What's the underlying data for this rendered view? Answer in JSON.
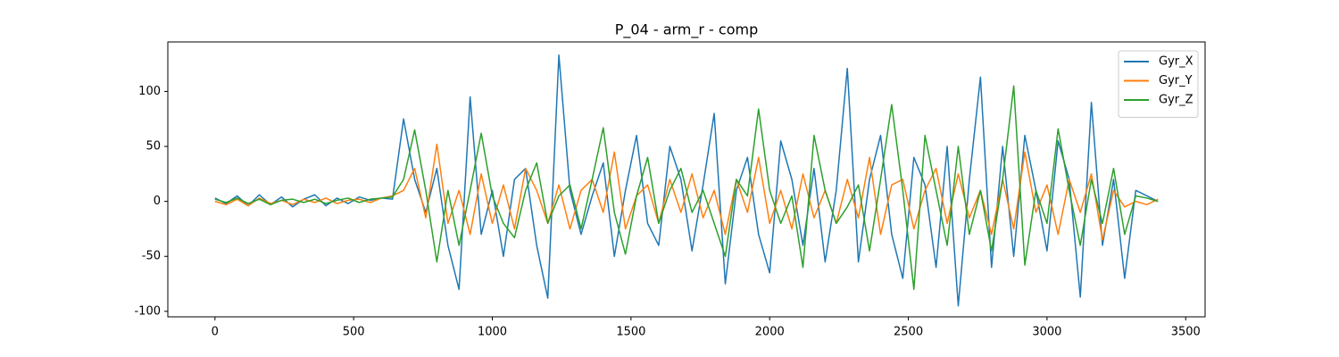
{
  "chart_data": {
    "type": "line",
    "title": "P_04 - arm_r - comp",
    "x": [
      0,
      40,
      80,
      120,
      160,
      200,
      240,
      280,
      320,
      360,
      400,
      440,
      480,
      520,
      560,
      600,
      640,
      680,
      720,
      760,
      800,
      840,
      880,
      920,
      960,
      1000,
      1040,
      1080,
      1120,
      1160,
      1200,
      1240,
      1280,
      1320,
      1360,
      1400,
      1440,
      1480,
      1520,
      1560,
      1600,
      1640,
      1680,
      1720,
      1760,
      1800,
      1840,
      1880,
      1920,
      1960,
      2000,
      2040,
      2080,
      2120,
      2160,
      2200,
      2240,
      2280,
      2320,
      2360,
      2400,
      2440,
      2480,
      2520,
      2560,
      2600,
      2640,
      2680,
      2720,
      2760,
      2800,
      2840,
      2880,
      2920,
      2960,
      3000,
      3040,
      3080,
      3120,
      3160,
      3200,
      3240,
      3280,
      3320,
      3360,
      3400
    ],
    "series": [
      {
        "name": "Gyr_X",
        "color": "#1f77b4",
        "values": [
          3,
          -2,
          5,
          -4,
          6,
          -3,
          4,
          -5,
          2,
          6,
          -4,
          3,
          -2,
          4,
          1,
          3,
          2,
          75,
          20,
          -10,
          30,
          -40,
          -80,
          95,
          -30,
          10,
          -50,
          20,
          30,
          -40,
          -88,
          133,
          10,
          -30,
          5,
          35,
          -50,
          10,
          60,
          -20,
          -40,
          50,
          20,
          -45,
          15,
          80,
          -75,
          10,
          40,
          -30,
          -65,
          55,
          20,
          -40,
          30,
          -55,
          10,
          121,
          -55,
          20,
          60,
          -30,
          -70,
          40,
          15,
          -60,
          50,
          -95,
          20,
          113,
          -60,
          50,
          -50,
          60,
          10,
          -45,
          55,
          20,
          -87,
          90,
          -40,
          20,
          -70,
          10,
          5,
          0
        ]
      },
      {
        "name": "Gyr_Y",
        "color": "#ff7f0e",
        "values": [
          0,
          -3,
          2,
          -4,
          3,
          -2,
          1,
          -3,
          2,
          -1,
          3,
          -2,
          1,
          2,
          -1,
          3,
          5,
          10,
          30,
          -15,
          52,
          -20,
          10,
          -30,
          25,
          -20,
          15,
          -25,
          30,
          10,
          -20,
          15,
          -25,
          10,
          20,
          -10,
          45,
          -25,
          5,
          15,
          -20,
          20,
          -10,
          25,
          -15,
          10,
          -30,
          20,
          -10,
          40,
          -20,
          10,
          -25,
          25,
          -15,
          10,
          -20,
          20,
          -15,
          40,
          -30,
          15,
          20,
          -25,
          10,
          30,
          -20,
          25,
          -15,
          10,
          -30,
          20,
          -25,
          45,
          -10,
          15,
          -30,
          20,
          -10,
          25,
          -35,
          10,
          -5,
          0,
          -3,
          2
        ]
      },
      {
        "name": "Gyr_Z",
        "color": "#2ca02c",
        "values": [
          2,
          -1,
          3,
          -2,
          2,
          -3,
          1,
          2,
          -1,
          2,
          -2,
          1,
          3,
          -1,
          2,
          3,
          4,
          20,
          65,
          10,
          -55,
          10,
          -40,
          10,
          62,
          5,
          -20,
          -33,
          10,
          35,
          -20,
          5,
          15,
          -25,
          20,
          67,
          -10,
          -48,
          5,
          40,
          -20,
          10,
          30,
          -10,
          10,
          -20,
          -50,
          20,
          5,
          84,
          10,
          -20,
          5,
          -60,
          60,
          10,
          -20,
          -5,
          15,
          -45,
          20,
          88,
          10,
          -80,
          60,
          10,
          -40,
          50,
          -30,
          10,
          -45,
          20,
          105,
          -58,
          10,
          -20,
          66,
          10,
          -40,
          20,
          -20,
          30,
          -30,
          5,
          3,
          0
        ]
      }
    ],
    "xlim": [
      -170,
      3570
    ],
    "ylim": [
      -105,
      145
    ],
    "xticks": [
      0,
      500,
      1000,
      1500,
      2000,
      2500,
      3000,
      3500
    ],
    "yticks": [
      -100,
      -50,
      0,
      50,
      100
    ],
    "legend": "upper right"
  }
}
